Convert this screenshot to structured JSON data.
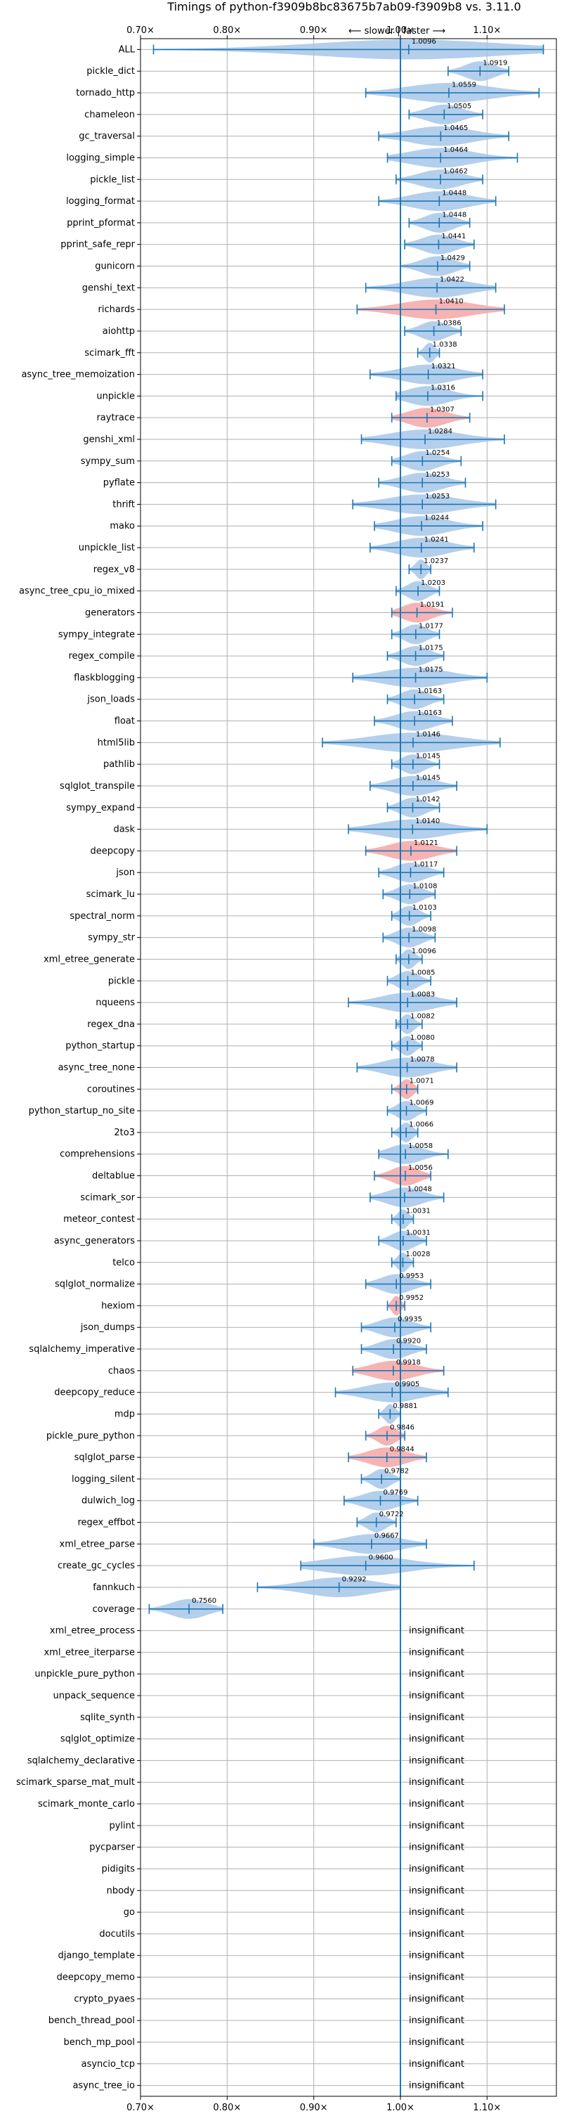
{
  "chart_data": {
    "type": "violin",
    "title": "Timings of python-f3909b8bc83675b7ab09-f3909b8 vs. 3.11.0",
    "subtitle": "⟵ slower | faster ⟶",
    "xlim": [
      0.7,
      1.18
    ],
    "x_ticks": [
      {
        "value": 0.7,
        "label": "0.70×"
      },
      {
        "value": 0.8,
        "label": "0.80×"
      },
      {
        "value": 0.9,
        "label": "0.90×"
      },
      {
        "value": 1.0,
        "label": "1.00×"
      },
      {
        "value": 1.1,
        "label": "1.10×"
      }
    ],
    "reference_line": 1.0,
    "grid": true,
    "colors": {
      "faster": "#a7c7e7",
      "slower": "#f4a6a6",
      "line": "#1f77b4"
    },
    "insignificant_label": "insignificant",
    "benchmarks": [
      {
        "name": "ALL",
        "value": 1.0096,
        "lo": 0.715,
        "hi": 1.165,
        "color": "faster"
      },
      {
        "name": "pickle_dict",
        "value": 1.0919,
        "lo": 1.055,
        "hi": 1.125,
        "color": "faster"
      },
      {
        "name": "tornado_http",
        "value": 1.0559,
        "lo": 0.96,
        "hi": 1.16,
        "color": "faster"
      },
      {
        "name": "chameleon",
        "value": 1.0505,
        "lo": 1.01,
        "hi": 1.095,
        "color": "faster"
      },
      {
        "name": "gc_traversal",
        "value": 1.0465,
        "lo": 0.975,
        "hi": 1.125,
        "color": "faster"
      },
      {
        "name": "logging_simple",
        "value": 1.0464,
        "lo": 0.985,
        "hi": 1.135,
        "color": "faster"
      },
      {
        "name": "pickle_list",
        "value": 1.0462,
        "lo": 0.995,
        "hi": 1.095,
        "color": "faster"
      },
      {
        "name": "logging_format",
        "value": 1.0448,
        "lo": 0.975,
        "hi": 1.11,
        "color": "faster"
      },
      {
        "name": "pprint_pformat",
        "value": 1.0448,
        "lo": 1.01,
        "hi": 1.08,
        "color": "faster"
      },
      {
        "name": "pprint_safe_repr",
        "value": 1.0441,
        "lo": 1.005,
        "hi": 1.085,
        "color": "faster"
      },
      {
        "name": "gunicorn",
        "value": 1.0429,
        "lo": 1.0,
        "hi": 1.08,
        "color": "faster"
      },
      {
        "name": "genshi_text",
        "value": 1.0422,
        "lo": 0.96,
        "hi": 1.11,
        "color": "faster"
      },
      {
        "name": "richards",
        "value": 1.041,
        "lo": 0.95,
        "hi": 1.12,
        "color": "slower"
      },
      {
        "name": "aiohttp",
        "value": 1.0386,
        "lo": 1.005,
        "hi": 1.07,
        "color": "faster"
      },
      {
        "name": "scimark_fft",
        "value": 1.0338,
        "lo": 1.02,
        "hi": 1.045,
        "color": "faster"
      },
      {
        "name": "async_tree_memoization",
        "value": 1.0321,
        "lo": 0.965,
        "hi": 1.095,
        "color": "faster"
      },
      {
        "name": "unpickle",
        "value": 1.0316,
        "lo": 0.995,
        "hi": 1.095,
        "color": "faster"
      },
      {
        "name": "raytrace",
        "value": 1.0307,
        "lo": 0.99,
        "hi": 1.08,
        "color": "slower"
      },
      {
        "name": "genshi_xml",
        "value": 1.0284,
        "lo": 0.955,
        "hi": 1.12,
        "color": "faster"
      },
      {
        "name": "sympy_sum",
        "value": 1.0254,
        "lo": 0.99,
        "hi": 1.07,
        "color": "faster"
      },
      {
        "name": "pyflate",
        "value": 1.0253,
        "lo": 0.975,
        "hi": 1.075,
        "color": "faster"
      },
      {
        "name": "thrift",
        "value": 1.0253,
        "lo": 0.945,
        "hi": 1.11,
        "color": "faster"
      },
      {
        "name": "mako",
        "value": 1.0244,
        "lo": 0.97,
        "hi": 1.095,
        "color": "faster"
      },
      {
        "name": "unpickle_list",
        "value": 1.0241,
        "lo": 0.965,
        "hi": 1.085,
        "color": "faster"
      },
      {
        "name": "regex_v8",
        "value": 1.0237,
        "lo": 1.01,
        "hi": 1.035,
        "color": "faster"
      },
      {
        "name": "async_tree_cpu_io_mixed",
        "value": 1.0203,
        "lo": 0.995,
        "hi": 1.045,
        "color": "faster"
      },
      {
        "name": "generators",
        "value": 1.0191,
        "lo": 0.99,
        "hi": 1.06,
        "color": "slower"
      },
      {
        "name": "sympy_integrate",
        "value": 1.0177,
        "lo": 0.99,
        "hi": 1.045,
        "color": "faster"
      },
      {
        "name": "regex_compile",
        "value": 1.0175,
        "lo": 0.985,
        "hi": 1.05,
        "color": "faster"
      },
      {
        "name": "flaskblogging",
        "value": 1.0175,
        "lo": 0.945,
        "hi": 1.1,
        "color": "faster"
      },
      {
        "name": "json_loads",
        "value": 1.0163,
        "lo": 0.985,
        "hi": 1.05,
        "color": "faster"
      },
      {
        "name": "float",
        "value": 1.0163,
        "lo": 0.97,
        "hi": 1.06,
        "color": "faster"
      },
      {
        "name": "html5lib",
        "value": 1.0146,
        "lo": 0.91,
        "hi": 1.115,
        "color": "faster"
      },
      {
        "name": "pathlib",
        "value": 1.0145,
        "lo": 0.99,
        "hi": 1.045,
        "color": "faster"
      },
      {
        "name": "sqlglot_transpile",
        "value": 1.0145,
        "lo": 0.965,
        "hi": 1.065,
        "color": "faster"
      },
      {
        "name": "sympy_expand",
        "value": 1.0142,
        "lo": 0.985,
        "hi": 1.045,
        "color": "faster"
      },
      {
        "name": "dask",
        "value": 1.014,
        "lo": 0.94,
        "hi": 1.1,
        "color": "faster"
      },
      {
        "name": "deepcopy",
        "value": 1.0121,
        "lo": 0.96,
        "hi": 1.065,
        "color": "slower"
      },
      {
        "name": "json",
        "value": 1.0117,
        "lo": 0.975,
        "hi": 1.05,
        "color": "faster"
      },
      {
        "name": "scimark_lu",
        "value": 1.0108,
        "lo": 0.98,
        "hi": 1.04,
        "color": "faster"
      },
      {
        "name": "spectral_norm",
        "value": 1.0103,
        "lo": 0.99,
        "hi": 1.035,
        "color": "faster"
      },
      {
        "name": "sympy_str",
        "value": 1.0098,
        "lo": 0.98,
        "hi": 1.04,
        "color": "faster"
      },
      {
        "name": "xml_etree_generate",
        "value": 1.0096,
        "lo": 0.995,
        "hi": 1.025,
        "color": "faster"
      },
      {
        "name": "pickle",
        "value": 1.0085,
        "lo": 0.985,
        "hi": 1.035,
        "color": "faster"
      },
      {
        "name": "nqueens",
        "value": 1.0083,
        "lo": 0.94,
        "hi": 1.065,
        "color": "faster"
      },
      {
        "name": "regex_dna",
        "value": 1.0082,
        "lo": 0.995,
        "hi": 1.025,
        "color": "faster"
      },
      {
        "name": "python_startup",
        "value": 1.008,
        "lo": 0.99,
        "hi": 1.025,
        "color": "faster"
      },
      {
        "name": "async_tree_none",
        "value": 1.0078,
        "lo": 0.95,
        "hi": 1.065,
        "color": "faster"
      },
      {
        "name": "coroutines",
        "value": 1.0071,
        "lo": 0.99,
        "hi": 1.02,
        "color": "slower"
      },
      {
        "name": "python_startup_no_site",
        "value": 1.0069,
        "lo": 0.985,
        "hi": 1.03,
        "color": "faster"
      },
      {
        "name": "2to3",
        "value": 1.0066,
        "lo": 0.99,
        "hi": 1.02,
        "color": "faster"
      },
      {
        "name": "comprehensions",
        "value": 1.0058,
        "lo": 0.975,
        "hi": 1.055,
        "color": "faster"
      },
      {
        "name": "deltablue",
        "value": 1.0056,
        "lo": 0.97,
        "hi": 1.035,
        "color": "slower"
      },
      {
        "name": "scimark_sor",
        "value": 1.0048,
        "lo": 0.965,
        "hi": 1.05,
        "color": "faster"
      },
      {
        "name": "meteor_contest",
        "value": 1.0031,
        "lo": 0.99,
        "hi": 1.015,
        "color": "faster"
      },
      {
        "name": "async_generators",
        "value": 1.0031,
        "lo": 0.975,
        "hi": 1.03,
        "color": "faster"
      },
      {
        "name": "telco",
        "value": 1.0028,
        "lo": 0.99,
        "hi": 1.015,
        "color": "faster"
      },
      {
        "name": "sqlglot_normalize",
        "value": 0.9953,
        "lo": 0.96,
        "hi": 1.035,
        "color": "faster"
      },
      {
        "name": "hexiom",
        "value": 0.9952,
        "lo": 0.985,
        "hi": 1.005,
        "color": "slower"
      },
      {
        "name": "json_dumps",
        "value": 0.9935,
        "lo": 0.955,
        "hi": 1.035,
        "color": "faster"
      },
      {
        "name": "sqlalchemy_imperative",
        "value": 0.992,
        "lo": 0.955,
        "hi": 1.03,
        "color": "faster"
      },
      {
        "name": "chaos",
        "value": 0.9918,
        "lo": 0.945,
        "hi": 1.05,
        "color": "slower"
      },
      {
        "name": "deepcopy_reduce",
        "value": 0.9905,
        "lo": 0.925,
        "hi": 1.055,
        "color": "faster"
      },
      {
        "name": "mdp",
        "value": 0.9881,
        "lo": 0.975,
        "hi": 1.0,
        "color": "faster"
      },
      {
        "name": "pickle_pure_python",
        "value": 0.9846,
        "lo": 0.96,
        "hi": 1.005,
        "color": "slower"
      },
      {
        "name": "sqlglot_parse",
        "value": 0.9844,
        "lo": 0.94,
        "hi": 1.03,
        "color": "slower"
      },
      {
        "name": "logging_silent",
        "value": 0.9782,
        "lo": 0.955,
        "hi": 1.0,
        "color": "faster"
      },
      {
        "name": "dulwich_log",
        "value": 0.9769,
        "lo": 0.935,
        "hi": 1.02,
        "color": "faster"
      },
      {
        "name": "regex_effbot",
        "value": 0.9722,
        "lo": 0.95,
        "hi": 0.995,
        "color": "faster"
      },
      {
        "name": "xml_etree_parse",
        "value": 0.9667,
        "lo": 0.9,
        "hi": 1.03,
        "color": "faster"
      },
      {
        "name": "create_gc_cycles",
        "value": 0.96,
        "lo": 0.885,
        "hi": 1.085,
        "color": "faster"
      },
      {
        "name": "fannkuch",
        "value": 0.9292,
        "lo": 0.835,
        "hi": 1.0,
        "color": "faster"
      },
      {
        "name": "coverage",
        "value": 0.756,
        "lo": 0.71,
        "hi": 0.795,
        "color": "faster"
      },
      {
        "name": "xml_etree_process",
        "value": null
      },
      {
        "name": "xml_etree_iterparse",
        "value": null
      },
      {
        "name": "unpickle_pure_python",
        "value": null
      },
      {
        "name": "unpack_sequence",
        "value": null
      },
      {
        "name": "sqlite_synth",
        "value": null
      },
      {
        "name": "sqlglot_optimize",
        "value": null
      },
      {
        "name": "sqlalchemy_declarative",
        "value": null
      },
      {
        "name": "scimark_sparse_mat_mult",
        "value": null
      },
      {
        "name": "scimark_monte_carlo",
        "value": null
      },
      {
        "name": "pylint",
        "value": null
      },
      {
        "name": "pycparser",
        "value": null
      },
      {
        "name": "pidigits",
        "value": null
      },
      {
        "name": "nbody",
        "value": null
      },
      {
        "name": "go",
        "value": null
      },
      {
        "name": "docutils",
        "value": null
      },
      {
        "name": "django_template",
        "value": null
      },
      {
        "name": "deepcopy_memo",
        "value": null
      },
      {
        "name": "crypto_pyaes",
        "value": null
      },
      {
        "name": "bench_thread_pool",
        "value": null
      },
      {
        "name": "bench_mp_pool",
        "value": null
      },
      {
        "name": "asyncio_tcp",
        "value": null
      },
      {
        "name": "async_tree_io",
        "value": null
      }
    ]
  }
}
